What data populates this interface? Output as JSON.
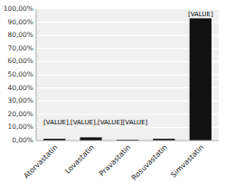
{
  "chart_data": {
    "type": "bar",
    "categories": [
      "Atorvastatin",
      "Lovastatin",
      "Pravastatin",
      "Rosuvastatin",
      "Simvastatin"
    ],
    "values": [
      0.0138,
      0.0242,
      0.0069,
      0.0138,
      0.929
    ],
    "color": "#111111",
    "ylim": [
      0,
      1.0
    ],
    "yticks": [
      {
        "value": 0.0,
        "label": "0,00%"
      },
      {
        "value": 0.1,
        "label": "10,00%"
      },
      {
        "value": 0.2,
        "label": "20,00%"
      },
      {
        "value": 0.3,
        "label": "30,00%"
      },
      {
        "value": 0.4,
        "label": "40,00%"
      },
      {
        "value": 0.5,
        "label": "50,00%"
      },
      {
        "value": 0.6,
        "label": "60,00%"
      },
      {
        "value": 0.7,
        "label": "70,00%"
      },
      {
        "value": 0.8,
        "label": "80,00%"
      },
      {
        "value": 0.9,
        "label": "90,00%"
      },
      {
        "value": 1.0,
        "label": "100,00%"
      }
    ],
    "grid": true,
    "annotations": [
      "[VALUE],[VALUE],[VALUE][VALUE]",
      "[VALUE]"
    ]
  }
}
